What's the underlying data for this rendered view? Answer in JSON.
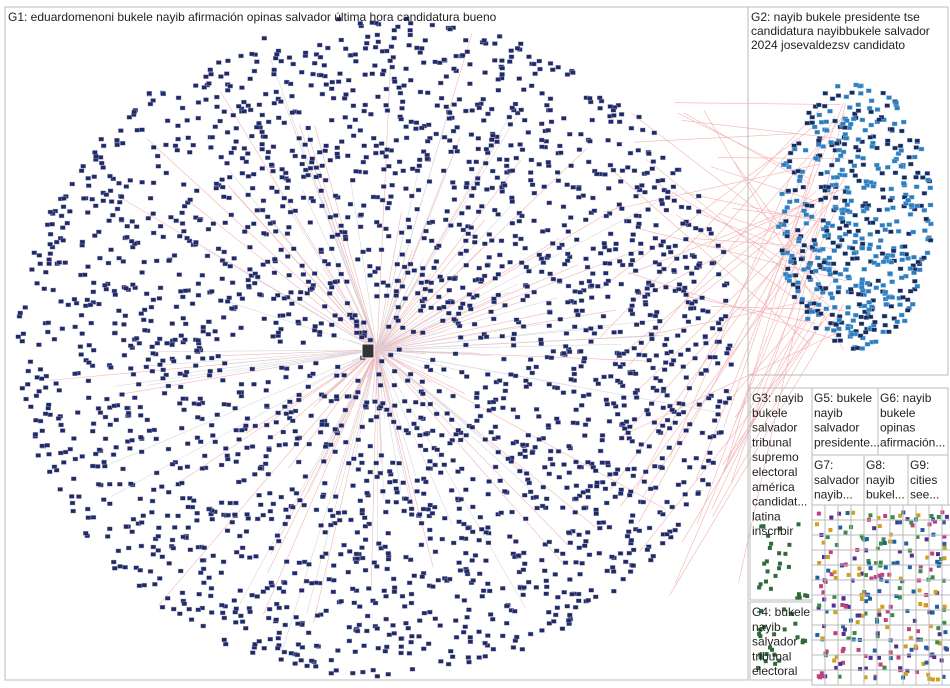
{
  "groups": [
    {
      "lines": [
        "G1: eduardomenoni bukele nayib afirmación opinas salvador última hora candidatura bueno"
      ]
    },
    {
      "lines": [
        "G2: nayib bukele presidente tse",
        "candidatura nayibbukele salvador",
        "2024 josevaldezsv candidato"
      ]
    },
    {
      "lines": [
        "G3: nayib",
        "bukele",
        "salvador",
        "tribunal",
        "supremo",
        "electoral",
        "américa",
        "candidat...",
        "latina",
        "inscribir"
      ]
    },
    {
      "lines": [
        "G4: bukele",
        "nayib",
        "salvador",
        "tribunal",
        "electoral"
      ]
    },
    {
      "lines": [
        "G5: bukele",
        "nayib",
        "salvador",
        "presidente..."
      ]
    },
    {
      "lines": [
        "G6: nayib",
        "bukele",
        "opinas",
        "afirmación..."
      ]
    },
    {
      "lines": [
        "G7:",
        "salvador",
        "nayib..."
      ]
    },
    {
      "lines": [
        "G8:",
        "nayib",
        "bukel..."
      ]
    },
    {
      "lines": [
        "G9:",
        "cities",
        "see..."
      ]
    }
  ]
}
